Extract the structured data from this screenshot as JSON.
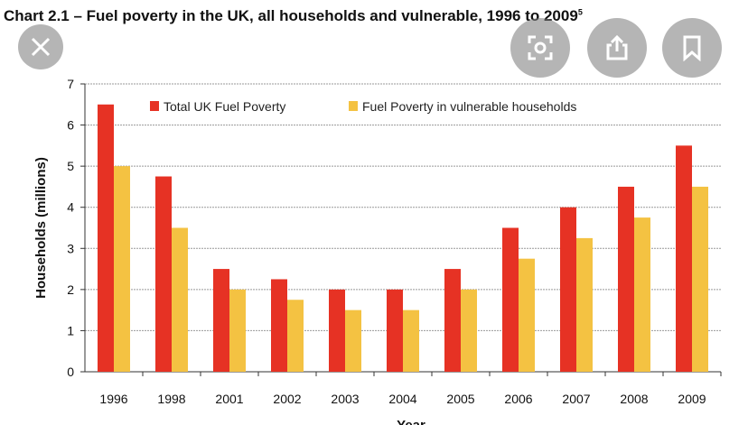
{
  "chart_data": {
    "type": "bar",
    "title": "Chart 2.1 – Fuel poverty in the UK, all households and vulnerable, 1996 to 2009",
    "title_sup": "5",
    "xlabel": "Year",
    "ylabel": "Households (millions)",
    "ylim": [
      0,
      7
    ],
    "yticks": [
      0,
      1,
      2,
      3,
      4,
      5,
      6,
      7
    ],
    "grid": true,
    "legend_position": "top",
    "categories": [
      "1996",
      "1998",
      "2001",
      "2002",
      "2003",
      "2004",
      "2005",
      "2006",
      "2007",
      "2008",
      "2009"
    ],
    "series": [
      {
        "name": "Total UK Fuel Poverty",
        "color": "#e63224",
        "values": [
          6.5,
          4.75,
          2.5,
          2.25,
          2.0,
          2.0,
          2.5,
          3.5,
          4.0,
          4.5,
          5.5
        ]
      },
      {
        "name": "Fuel Poverty in vulnerable households",
        "color": "#f4c242",
        "values": [
          5.0,
          3.5,
          2.0,
          1.75,
          1.5,
          1.5,
          2.0,
          2.75,
          3.25,
          3.75,
          4.5
        ]
      }
    ]
  },
  "overlay": {
    "icons": [
      "close-icon",
      "lens-icon",
      "share-icon",
      "bookmark-icon"
    ]
  }
}
